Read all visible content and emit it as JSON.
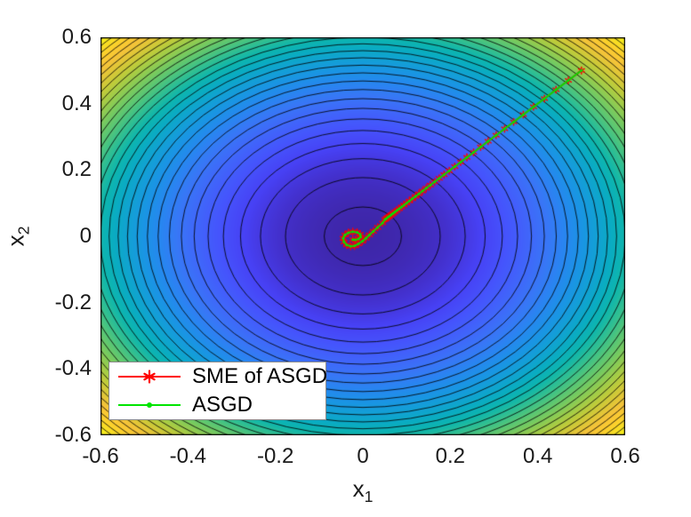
{
  "figure": {
    "background": "#ffffff"
  },
  "chart_data": {
    "type": "contour",
    "title": "",
    "xlabel": {
      "base": "x",
      "sub": "1"
    },
    "ylabel": {
      "base": "x",
      "sub": "2"
    },
    "xlim": [
      -0.6,
      0.6
    ],
    "ylim": [
      -0.6,
      0.6
    ],
    "xticks": {
      "values": [
        -0.6,
        -0.4,
        -0.2,
        0,
        0.2,
        0.4,
        0.6
      ],
      "labels": [
        "-0.6",
        "-0.4",
        "-0.2",
        "0",
        "0.2",
        "0.4",
        "0.6"
      ]
    },
    "yticks": {
      "values": [
        0.6,
        0.4,
        0.2,
        0,
        -0.2,
        -0.4,
        -0.6
      ],
      "labels": [
        "0.6",
        "0.4",
        "0.2",
        "0",
        "-0.2",
        "-0.4",
        "-0.6"
      ]
    },
    "grid": false,
    "contour": {
      "function": "f(x1,x2) = x1^2 + x2^2",
      "level_start": 0.0078,
      "level_step": 0.0235,
      "n_levels": 31,
      "color_max_f": 0.72,
      "line_color": "#000000",
      "colormap_name": "parula",
      "colormap": [
        [
          0.0,
          "#3e26a8"
        ],
        [
          0.05,
          "#4330cc"
        ],
        [
          0.1,
          "#4741f4"
        ],
        [
          0.15,
          "#4554fc"
        ],
        [
          0.2,
          "#4066fa"
        ],
        [
          0.25,
          "#3877f6"
        ],
        [
          0.3,
          "#2787f0"
        ],
        [
          0.35,
          "#1a95e4"
        ],
        [
          0.4,
          "#12a1d4"
        ],
        [
          0.45,
          "#0aacc2"
        ],
        [
          0.5,
          "#0eb6ad"
        ],
        [
          0.55,
          "#30bf92"
        ],
        [
          0.6,
          "#55c677"
        ],
        [
          0.65,
          "#78ca5f"
        ],
        [
          0.7,
          "#9dcc4a"
        ],
        [
          0.75,
          "#c0cb3a"
        ],
        [
          0.8,
          "#dec737"
        ],
        [
          0.85,
          "#f6c339"
        ],
        [
          0.9,
          "#fcce2e"
        ],
        [
          0.95,
          "#f8e022"
        ],
        [
          1.0,
          "#f9fb15"
        ]
      ]
    },
    "series": [
      {
        "name": "SME of ASGD",
        "color": "#ff0000",
        "marker": "asterisk",
        "line_width": 2
      },
      {
        "name": "ASGD",
        "color": "#00e400",
        "marker": "dot",
        "line_width": 1.8
      }
    ],
    "trajectory": {
      "start": [
        0.5,
        0.5
      ],
      "decay": 0.94,
      "n_diagonal": 37,
      "hook": [
        [
          0.045,
          0.04
        ],
        [
          0.034,
          0.027
        ],
        [
          0.024,
          0.015
        ],
        [
          0.015,
          0.004
        ],
        [
          0.007,
          -0.006
        ],
        [
          -0.001,
          -0.015
        ],
        [
          -0.01,
          -0.023
        ],
        [
          -0.019,
          -0.029
        ],
        [
          -0.028,
          -0.03
        ],
        [
          -0.037,
          -0.026
        ],
        [
          -0.043,
          -0.017
        ],
        [
          -0.045,
          -0.006
        ],
        [
          -0.041,
          0.004
        ],
        [
          -0.033,
          0.011
        ],
        [
          -0.023,
          0.014
        ],
        [
          -0.013,
          0.012
        ],
        [
          -0.006,
          0.006
        ],
        [
          -0.005,
          -0.002
        ],
        [
          -0.01,
          -0.008
        ],
        [
          -0.017,
          -0.011
        ],
        [
          -0.023,
          -0.01
        ]
      ]
    },
    "legend": {
      "position": "southwest",
      "border_color": "#898989",
      "background": "#ffffff"
    }
  }
}
